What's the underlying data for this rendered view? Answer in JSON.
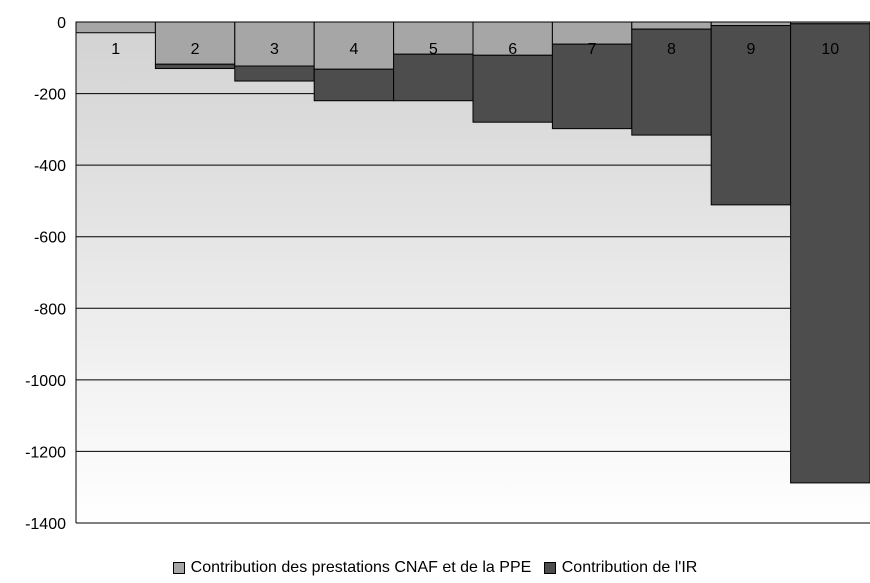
{
  "chart_data": {
    "type": "bar",
    "stacked": true,
    "categories": [
      "1",
      "2",
      "3",
      "4",
      "5",
      "6",
      "7",
      "8",
      "9",
      "10"
    ],
    "series": [
      {
        "name": "Contribution des prestations CNAF et de la PPE",
        "color": "#a6a6a6",
        "values": [
          -30,
          -118,
          -123,
          -132,
          -90,
          -93,
          -62,
          -20,
          -10,
          -5
        ]
      },
      {
        "name": "Contribution de l'IR",
        "color": "#4d4d4d",
        "values": [
          0,
          -12,
          -42,
          -88,
          -130,
          -187,
          -236,
          -296,
          -501,
          -1283
        ]
      }
    ],
    "yticks": [
      0,
      -200,
      -400,
      -600,
      -800,
      -1000,
      -1200,
      -1400
    ],
    "ylim": [
      -1400,
      0
    ],
    "grid": true,
    "legend_position": "bottom",
    "title": "",
    "xlabel": "",
    "ylabel": ""
  }
}
